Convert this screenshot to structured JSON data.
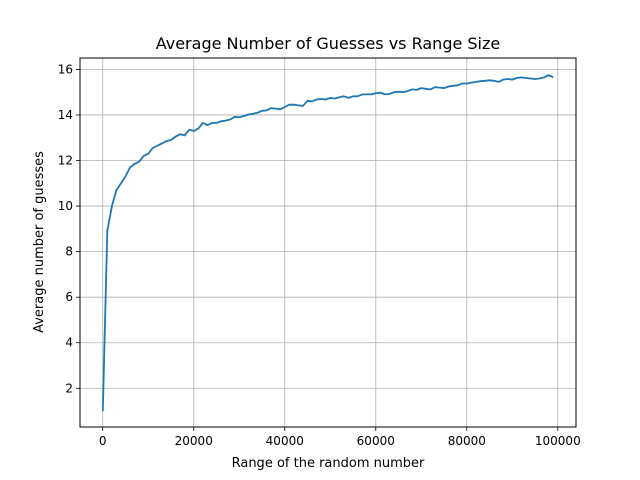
{
  "chart_data": {
    "type": "line",
    "title": "Average Number of Guesses vs Range Size",
    "xlabel": "Range of the random number",
    "ylabel": "Average number of guesses",
    "xlim": [
      -5000,
      104000
    ],
    "ylim": [
      0.3,
      16.5
    ],
    "xticks": [
      0,
      20000,
      40000,
      60000,
      80000,
      100000
    ],
    "yticks": [
      2,
      4,
      6,
      8,
      10,
      12,
      14,
      16
    ],
    "grid": true,
    "series": [
      {
        "color": "#1f77b4",
        "x": [
          0,
          1000,
          2000,
          3000,
          4000,
          5000,
          6000,
          7000,
          8000,
          9000,
          10000,
          11000,
          12000,
          13000,
          14000,
          15000,
          16000,
          17000,
          18000,
          19000,
          20000,
          21000,
          22000,
          23000,
          24000,
          25000,
          26000,
          27000,
          28000,
          29000,
          30000,
          31000,
          32000,
          33000,
          34000,
          35000,
          36000,
          37000,
          38000,
          39000,
          40000,
          41000,
          42000,
          43000,
          44000,
          45000,
          46000,
          47000,
          48000,
          49000,
          50000,
          51000,
          52000,
          53000,
          54000,
          55000,
          56000,
          57000,
          58000,
          59000,
          60000,
          61000,
          62000,
          63000,
          64000,
          65000,
          66000,
          67000,
          68000,
          69000,
          70000,
          71000,
          72000,
          73000,
          74000,
          75000,
          76000,
          77000,
          78000,
          79000,
          80000,
          81000,
          82000,
          83000,
          84000,
          85000,
          86000,
          87000,
          88000,
          89000,
          90000,
          91000,
          92000,
          93000,
          94000,
          95000,
          96000,
          97000,
          98000,
          99000
        ],
        "y": [
          1.0,
          8.9,
          10.0,
          10.7,
          11.0,
          11.3,
          11.7,
          11.85,
          11.95,
          12.2,
          12.3,
          12.55,
          12.65,
          12.75,
          12.85,
          12.9,
          13.05,
          13.15,
          13.1,
          13.35,
          13.3,
          13.4,
          13.65,
          13.55,
          13.65,
          13.65,
          13.72,
          13.75,
          13.8,
          13.92,
          13.9,
          13.95,
          14.02,
          14.05,
          14.1,
          14.18,
          14.2,
          14.3,
          14.28,
          14.25,
          14.35,
          14.45,
          14.45,
          14.42,
          14.4,
          14.62,
          14.6,
          14.68,
          14.7,
          14.68,
          14.75,
          14.72,
          14.78,
          14.82,
          14.75,
          14.82,
          14.82,
          14.9,
          14.9,
          14.9,
          14.95,
          14.98,
          14.9,
          14.92,
          15.0,
          15.02,
          15.0,
          15.05,
          15.12,
          15.1,
          15.18,
          15.15,
          15.12,
          15.22,
          15.2,
          15.18,
          15.25,
          15.28,
          15.3,
          15.38,
          15.38,
          15.42,
          15.45,
          15.48,
          15.5,
          15.52,
          15.5,
          15.45,
          15.55,
          15.58,
          15.55,
          15.62,
          15.65,
          15.62,
          15.6,
          15.58,
          15.6,
          15.65,
          15.75,
          15.65
        ]
      }
    ]
  }
}
